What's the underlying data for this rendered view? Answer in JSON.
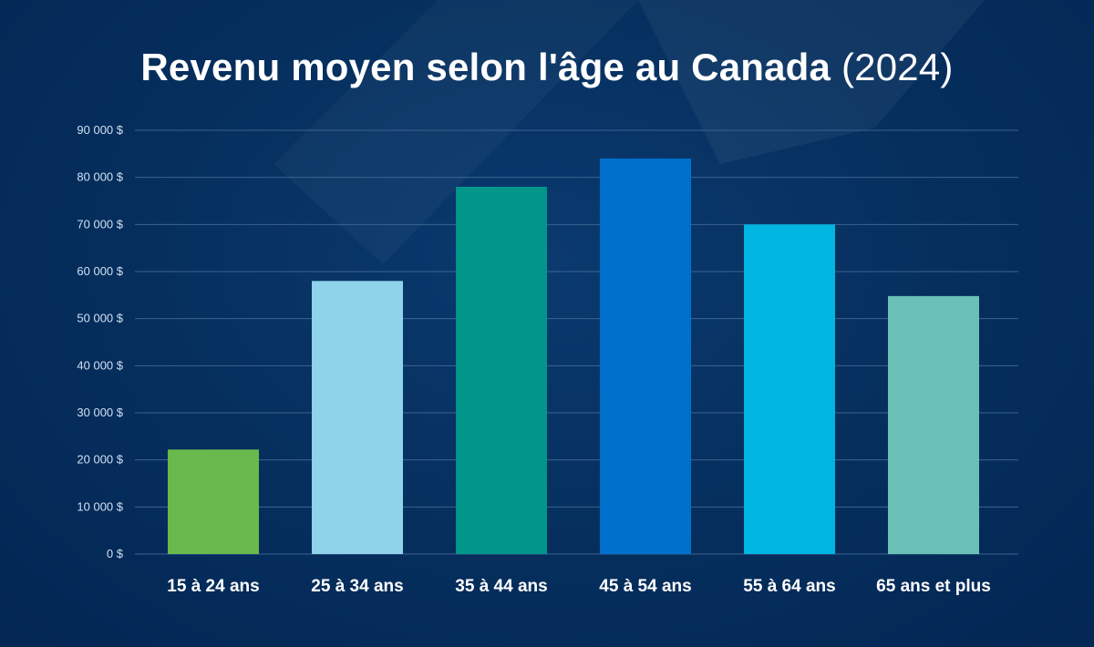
{
  "chart_data": {
    "type": "bar",
    "title": "Revenu moyen selon l'âge au Canada",
    "title_year": "(2024)",
    "categories": [
      "15 à 24 ans",
      "25 à 34 ans",
      "35 à 44 ans",
      "45 à 54 ans",
      "55 à 64 ans",
      "65 ans et plus"
    ],
    "values": [
      22200,
      58000,
      78000,
      84000,
      70000,
      54800
    ],
    "bar_colors": [
      "#6ab94c",
      "#8ed3ea",
      "#00968a",
      "#0070cd",
      "#00b5e2",
      "#6ac0b6"
    ],
    "ylim": [
      0,
      90000
    ],
    "yticks": [
      0,
      10000,
      20000,
      30000,
      40000,
      50000,
      60000,
      70000,
      80000,
      90000
    ],
    "ytick_labels": [
      "0 $",
      "10 000 $",
      "20 000 $",
      "30 000 $",
      "40 000 $",
      "50 000 $",
      "60 000 $",
      "70 000 $",
      "80 000 $",
      "90 000 $"
    ],
    "grid": true,
    "xlabel": "",
    "ylabel": ""
  },
  "colors": {
    "background": "#06305f",
    "gridline": "#3c6390",
    "tick_text": "#cfe0f2",
    "category_text": "#ffffff"
  }
}
